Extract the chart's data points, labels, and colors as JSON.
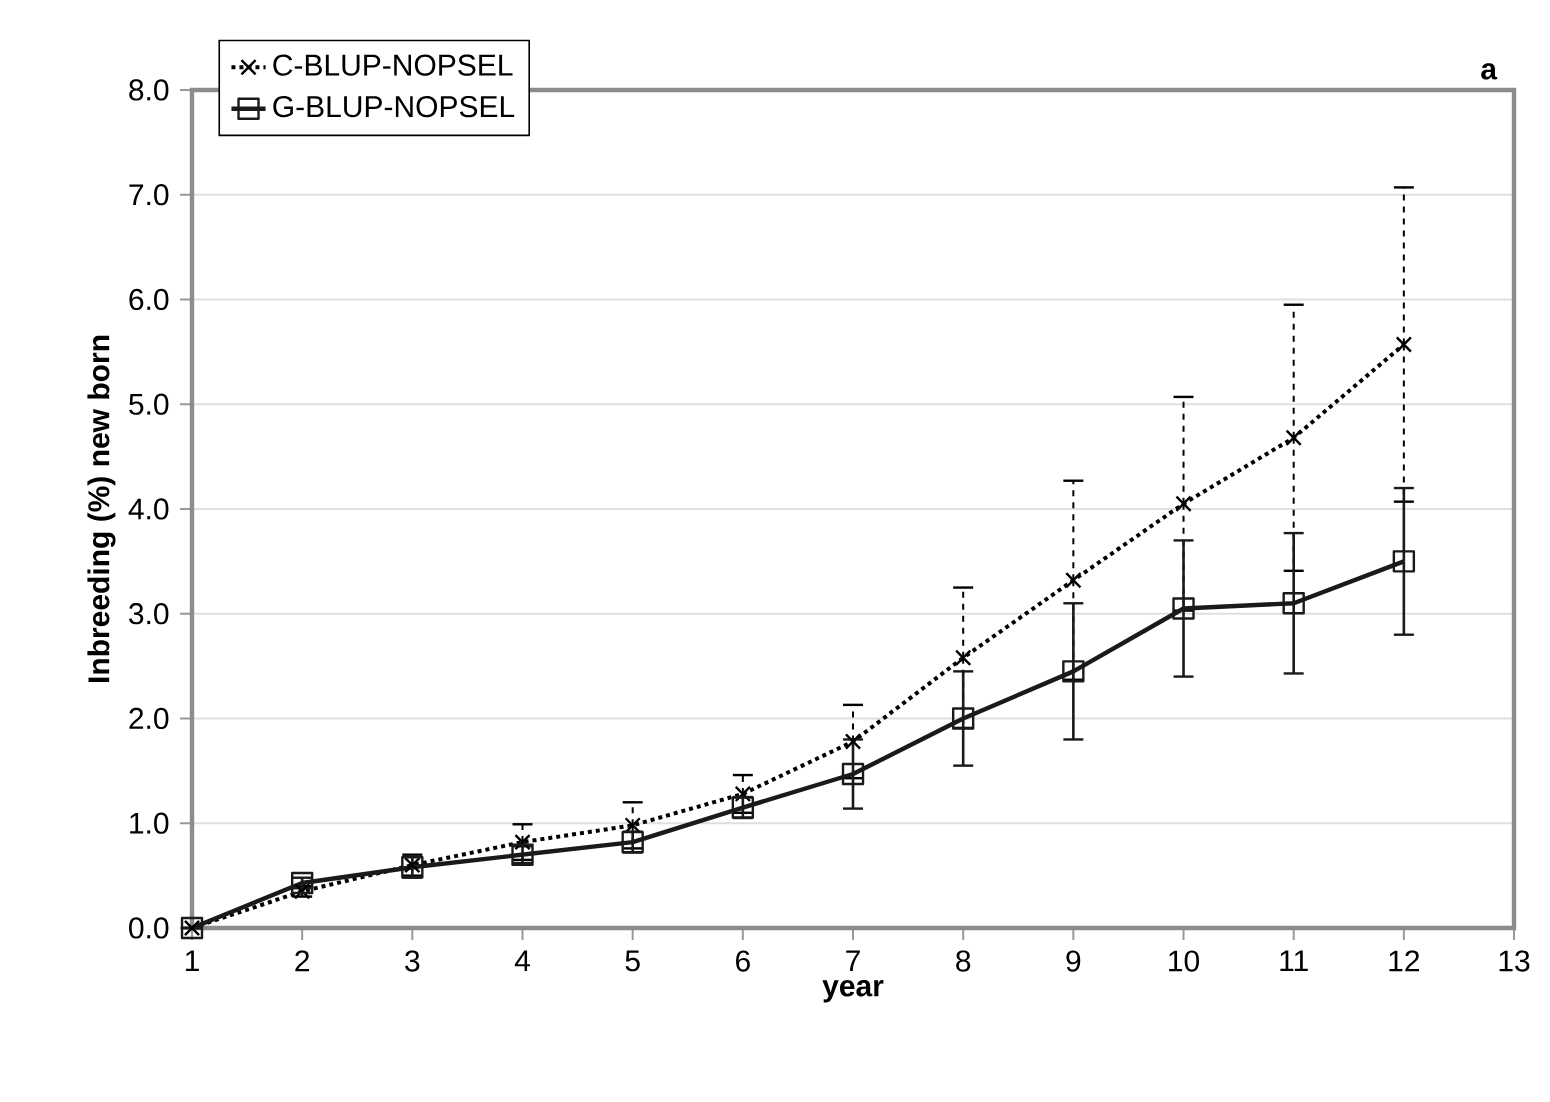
{
  "chart_data": {
    "type": "line",
    "xlabel": "year",
    "ylabel": "Inbreeding  (%) new born",
    "annotations": [
      "a"
    ],
    "x": [
      1,
      2,
      3,
      4,
      5,
      6,
      7,
      8,
      9,
      10,
      11,
      12
    ],
    "series": [
      {
        "name": "C-BLUP-NOPSEL",
        "color": "#000000",
        "marker": "cross",
        "line_style": "dotted",
        "values": [
          0,
          0.35,
          0.6,
          0.82,
          0.98,
          1.28,
          1.78,
          2.58,
          3.32,
          4.05,
          4.68,
          5.57
        ],
        "errors": [
          null,
          0.05,
          0.1,
          0.17,
          0.22,
          0.18,
          0.35,
          0.67,
          0.95,
          1.02,
          1.27,
          1.5
        ]
      },
      {
        "name": "G-BLUP-NOPSEL",
        "color": "#1a1a1a",
        "marker": "square",
        "line_style": "solid",
        "values": [
          0,
          0.43,
          0.58,
          0.7,
          0.82,
          1.15,
          1.47,
          2.0,
          2.45,
          3.05,
          3.1,
          3.5
        ],
        "errors": [
          null,
          0.05,
          0.1,
          0.08,
          0.1,
          0.1,
          0.33,
          0.45,
          0.65,
          0.65,
          0.67,
          0.7
        ]
      }
    ],
    "xlim": [
      1,
      13
    ],
    "xticks": [
      1,
      2,
      3,
      4,
      5,
      6,
      7,
      8,
      9,
      10,
      11,
      12,
      13
    ],
    "ylim": [
      0,
      8
    ],
    "yticks": [
      {
        "value": 0,
        "label": "0.0"
      },
      {
        "value": 1,
        "label": "1.0"
      },
      {
        "value": 2,
        "label": "2.0"
      },
      {
        "value": 3,
        "label": "3.0"
      },
      {
        "value": 4,
        "label": "4.0"
      },
      {
        "value": 5,
        "label": "5.0"
      },
      {
        "value": 6,
        "label": "6.0"
      },
      {
        "value": 7,
        "label": "7.0"
      },
      {
        "value": 8,
        "label": "8.0"
      }
    ],
    "grid": "y",
    "legend": "top left"
  }
}
